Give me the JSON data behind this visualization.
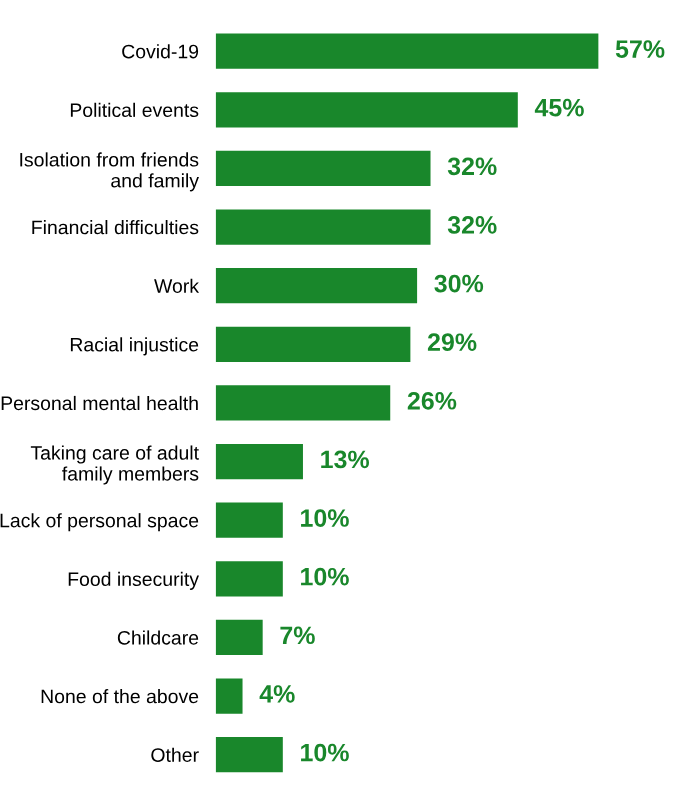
{
  "chart_data": {
    "type": "bar",
    "orientation": "horizontal",
    "categories": [
      "Covid-19",
      "Political events",
      "Isolation from friends\nand family",
      "Financial difficulties",
      "Work",
      "Racial injustice",
      "Personal mental health",
      "Taking care of adult\nfamily members",
      "Lack of personal space",
      "Food insecurity",
      "Childcare",
      "None of the above",
      "Other"
    ],
    "values": [
      57,
      45,
      32,
      32,
      30,
      29,
      26,
      13,
      10,
      10,
      7,
      4,
      10
    ],
    "value_labels": [
      "57%",
      "45%",
      "32%",
      "32%",
      "30%",
      "29%",
      "26%",
      "13%",
      "10%",
      "10%",
      "7%",
      "4%",
      "10%"
    ],
    "color": "#19872b",
    "grid": false,
    "legend": false
  }
}
